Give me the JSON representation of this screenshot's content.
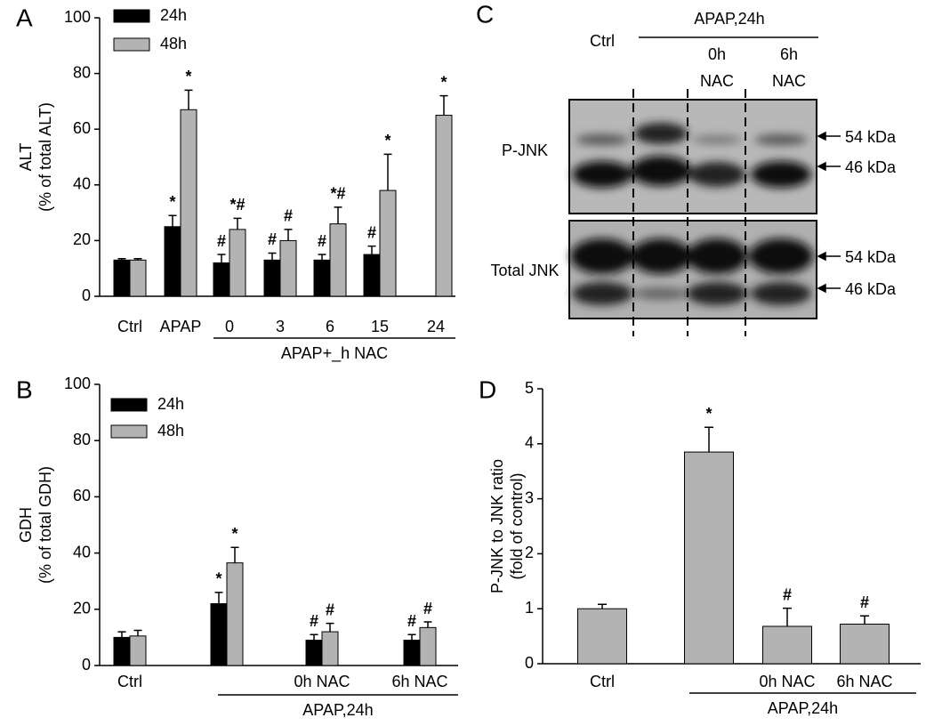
{
  "chart_data": [
    {
      "type": "bar",
      "panel": "A",
      "y_label": [
        "ALT",
        "(% of total ALT)"
      ],
      "categories": [
        "Ctrl",
        "APAP",
        "0",
        "3",
        "6",
        "15",
        "24"
      ],
      "group_label": "APAP+_h NAC",
      "series": [
        {
          "name": "24h",
          "color": "#000000",
          "values": [
            13,
            25,
            12,
            13,
            13,
            15,
            null
          ],
          "errors": [
            0.5,
            4,
            3,
            2.5,
            2,
            3,
            null
          ],
          "annotations": [
            null,
            "*",
            "#",
            "#",
            "#",
            "#",
            null
          ]
        },
        {
          "name": "48h",
          "color": "#b3b3b3",
          "values": [
            13,
            67,
            24,
            20,
            26,
            38,
            65
          ],
          "errors": [
            0.5,
            7,
            4,
            4,
            6,
            13,
            7
          ],
          "annotations": [
            null,
            "*",
            "*#",
            "#",
            "*#",
            "*",
            "*"
          ]
        }
      ],
      "ylim": [
        0,
        100
      ],
      "yticks": [
        0,
        20,
        40,
        60,
        80,
        100
      ]
    },
    {
      "type": "bar",
      "panel": "B",
      "y_label": [
        "GDH",
        "(% of total GDH)"
      ],
      "categories": [
        "Ctrl",
        null,
        "0h NAC",
        "6h NAC"
      ],
      "group_label": "APAP,24h",
      "series": [
        {
          "name": "24h",
          "color": "#000000",
          "values": [
            10,
            22,
            9,
            9
          ],
          "errors": [
            2,
            4,
            2,
            2
          ],
          "annotations": [
            null,
            "*",
            "#",
            "#"
          ]
        },
        {
          "name": "48h",
          "color": "#b3b3b3",
          "values": [
            10.5,
            36.5,
            12,
            13.5
          ],
          "errors": [
            2,
            5.5,
            3,
            2
          ],
          "annotations": [
            null,
            "*",
            "#",
            "#"
          ]
        }
      ],
      "ylim": [
        0,
        100
      ],
      "yticks": [
        0,
        20,
        40,
        60,
        80,
        100
      ]
    },
    {
      "type": "bar",
      "panel": "D",
      "y_label": [
        "P-JNK to JNK ratio",
        "(fold of control)"
      ],
      "categories": [
        "Ctrl",
        null,
        "0h NAC",
        "6h NAC"
      ],
      "group_label": "APAP,24h",
      "series": [
        {
          "color": "#b3b3b3",
          "values": [
            1.0,
            3.85,
            0.68,
            0.72
          ],
          "errors": [
            0.08,
            0.45,
            0.33,
            0.15
          ],
          "annotations": [
            null,
            "*",
            "#",
            "#"
          ]
        }
      ],
      "ylim": [
        0,
        5
      ],
      "yticks": [
        0,
        1,
        2,
        3,
        4,
        5
      ]
    }
  ],
  "blot": {
    "panel": "C",
    "ctrl": "Ctrl",
    "treatment": "APAP,24h",
    "lane3": [
      "0h",
      "NAC"
    ],
    "lane4": [
      "6h",
      "NAC"
    ],
    "rows": [
      {
        "label": "P-JNK",
        "bands": [
          "54 kDa",
          "46 kDa"
        ]
      },
      {
        "label": "Total JNK",
        "bands": [
          "54 kDa",
          "46 kDa"
        ]
      }
    ]
  }
}
